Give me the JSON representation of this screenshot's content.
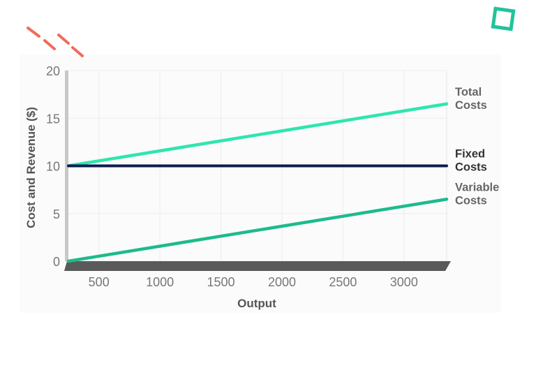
{
  "colors": {
    "total": "#2ee6ae",
    "fixed": "#0d1b4f",
    "variable": "#1dbb8c",
    "axis_base": "#5a5a5a",
    "deco_red": "#f26a5c",
    "deco_green": "#22c39a"
  },
  "decor": {
    "dash_icon": "diagonal-dash-marks",
    "square_icon": "tilted-square-outline"
  },
  "chart_data": {
    "type": "line",
    "xlabel": "Output",
    "ylabel": "Cost and Revenue ($)",
    "xlim": [
      250,
      3350
    ],
    "ylim": [
      0,
      20
    ],
    "x_ticks": [
      500,
      1000,
      1500,
      2000,
      2500,
      3000
    ],
    "y_ticks": [
      0,
      5,
      10,
      15,
      20
    ],
    "grid": true,
    "legend": "labels at right end of each line",
    "series": [
      {
        "name": "Total Costs",
        "name_lines": [
          "Total",
          "Costs"
        ],
        "color_key": "total",
        "x": [
          250,
          3350
        ],
        "y": [
          10,
          16.5
        ]
      },
      {
        "name": "Fixed Costs",
        "name_lines": [
          "Fixed",
          "Costs"
        ],
        "color_key": "fixed",
        "x": [
          250,
          3350
        ],
        "y": [
          10,
          10
        ]
      },
      {
        "name": "Variable Costs",
        "name_lines": [
          "Variable",
          "Costs"
        ],
        "color_key": "variable",
        "x": [
          250,
          3350
        ],
        "y": [
          0,
          6.5
        ]
      }
    ]
  }
}
